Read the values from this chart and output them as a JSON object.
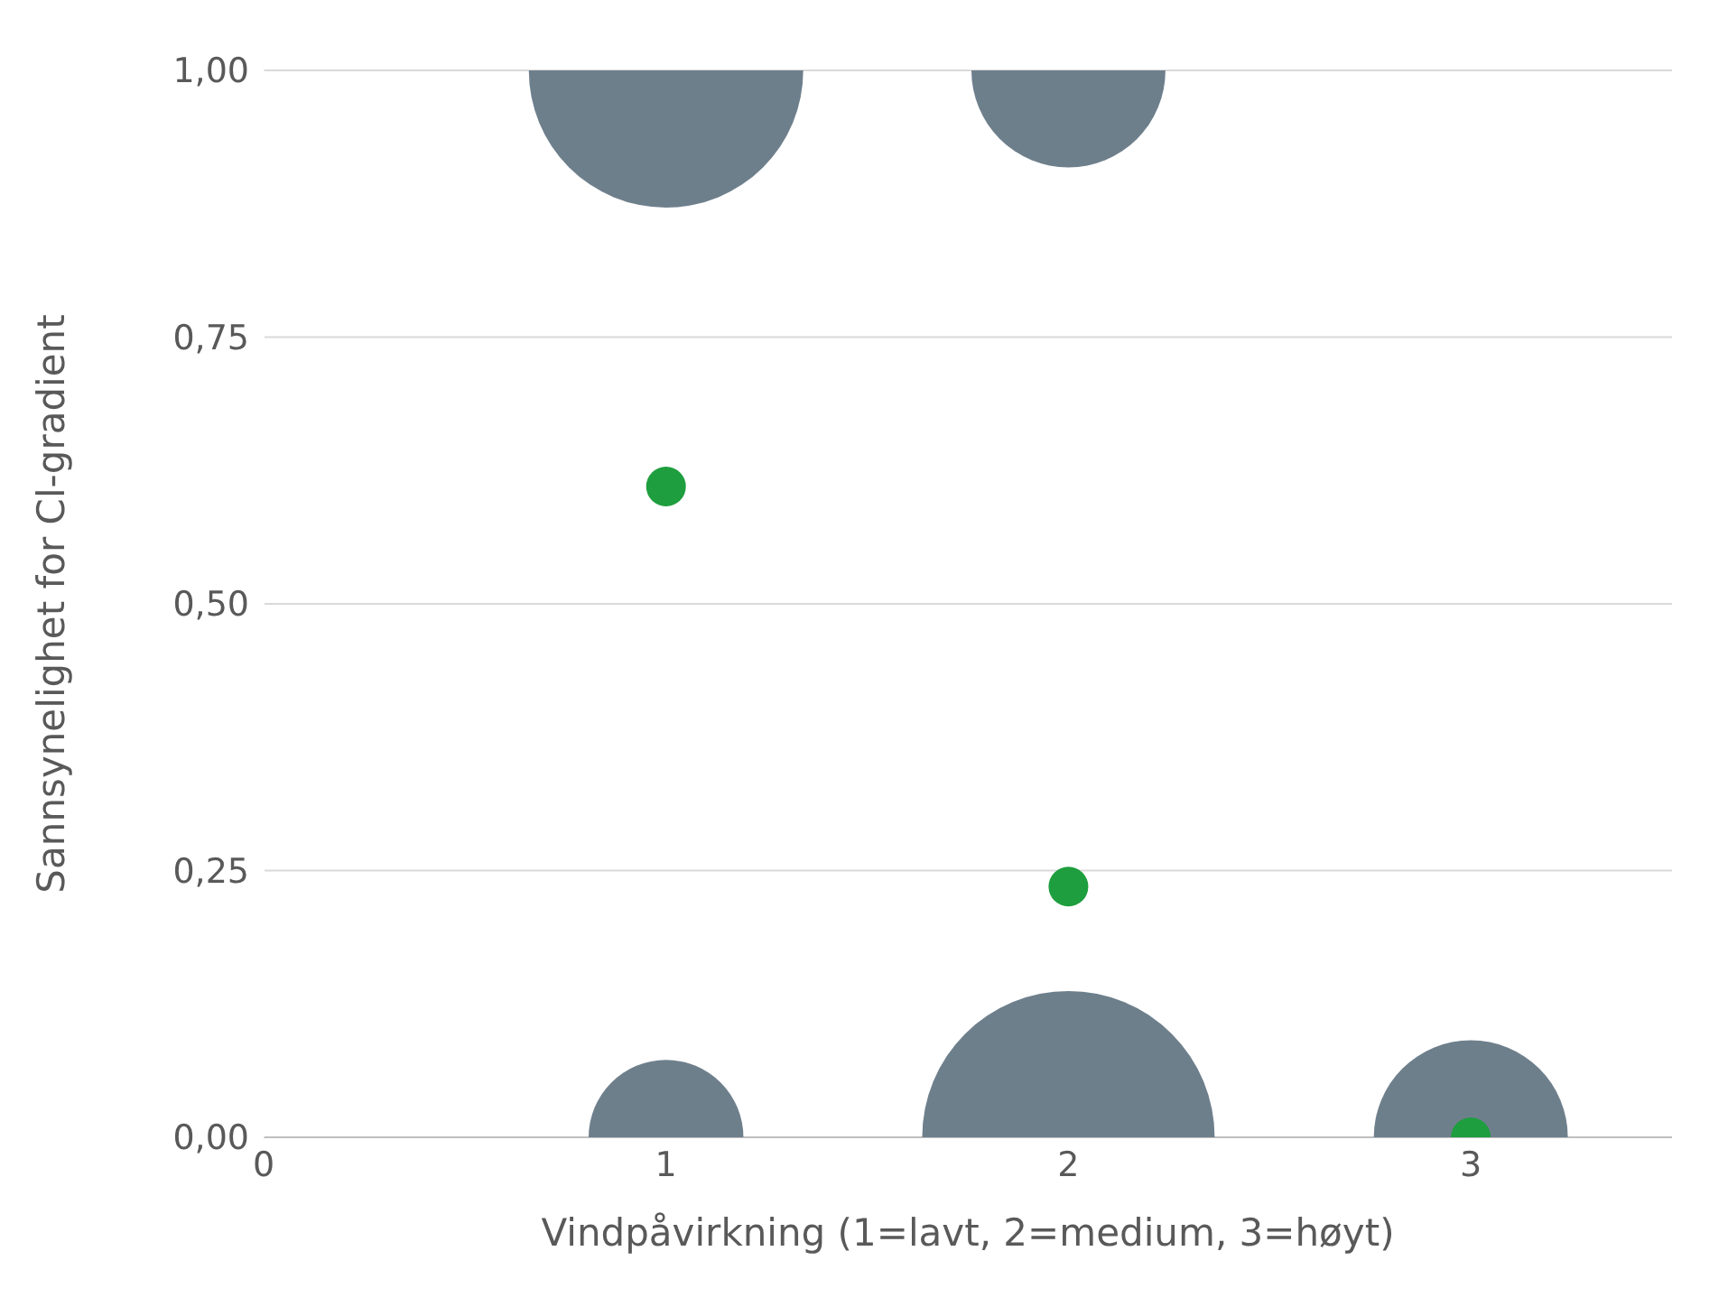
{
  "chart_data": {
    "type": "bubble",
    "xlabel": "Vindpåvirkning (1=lavt, 2=medium, 3=høyt)",
    "ylabel": "Sannsynelighet for Cl-gradient",
    "xlim": [
      0,
      3.5
    ],
    "xticks": [
      0,
      1,
      2,
      3
    ],
    "ylim": [
      0,
      1
    ],
    "yticks": [
      {
        "value": 0,
        "label": "0,00"
      },
      {
        "value": 0.25,
        "label": "0,25"
      },
      {
        "value": 0.5,
        "label": "0,50"
      },
      {
        "value": 0.75,
        "label": "0,75"
      },
      {
        "value": 1,
        "label": "1,00"
      }
    ],
    "grid": "y",
    "legend": false,
    "series": [
      {
        "type": "bubble",
        "color": "#6e7f8c",
        "x": [
          1,
          2,
          1,
          2,
          3
        ],
        "values": [
          1,
          1,
          0,
          0,
          0
        ],
        "sizes": [
          0.88,
          0.44,
          0.28,
          1,
          0.44
        ]
      },
      {
        "type": "scatter",
        "color": "#1e9e3e",
        "x": [
          1,
          2,
          3
        ],
        "values": [
          0.61,
          0.235,
          0
        ],
        "marker": "circle"
      }
    ]
  }
}
